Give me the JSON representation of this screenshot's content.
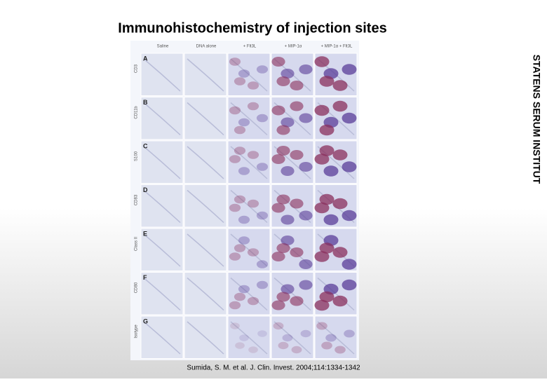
{
  "title": "Immunohistochemistry of injection sites",
  "side_text": "STATENS SERUM INSTITUT",
  "citation": "Sumida, S. M. et al. J. Clin. Invest. 2004;114:1334-1342",
  "figure": {
    "columns": [
      "Saline",
      "DNA alone",
      "+ Flt3L",
      "+ MIP-1α",
      "+ MIP-1α + Flt3L"
    ],
    "rows": [
      {
        "letter": "A",
        "label": "CD3"
      },
      {
        "letter": "B",
        "label": "CD11b"
      },
      {
        "letter": "C",
        "label": "S100"
      },
      {
        "letter": "D",
        "label": "CD83"
      },
      {
        "letter": "E",
        "label": "Class II"
      },
      {
        "letter": "F",
        "label": "CD80"
      },
      {
        "letter": "G",
        "label": "Isotype"
      }
    ]
  }
}
